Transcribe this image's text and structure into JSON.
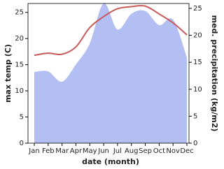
{
  "chart_data": {
    "type": "line-area",
    "x_label": "date (month)",
    "y_label": "max temp (C)",
    "y2_label": "med. precipitation (kg/m2)",
    "categories": [
      "Jan",
      "Feb",
      "Mar",
      "Apr",
      "May",
      "Jun",
      "Jul",
      "Aug",
      "Sep",
      "Oct",
      "Nov",
      "Dec"
    ],
    "series": [
      {
        "name": "max temp",
        "color": "#c85a5a",
        "axis": "y",
        "values": [
          16.8,
          17.2,
          17.0,
          18.4,
          22.1,
          24.2,
          25.7,
          26.1,
          26.2,
          24.7,
          23.0,
          20.7
        ]
      },
      {
        "name": "med. precipitation",
        "color": "#b3bff3",
        "axis": "y2",
        "values": [
          13.2,
          13.3,
          11.4,
          14.6,
          18.5,
          25.9,
          21.1,
          24.0,
          24.5,
          21.9,
          22.9,
          15.9
        ]
      }
    ],
    "ylim": [
      0,
      26.7
    ],
    "yticks": [
      0,
      5,
      10,
      15,
      20,
      25
    ],
    "y2lim": [
      0,
      25.9
    ],
    "y2ticks": [
      0,
      5,
      10,
      15,
      20,
      25
    ]
  }
}
